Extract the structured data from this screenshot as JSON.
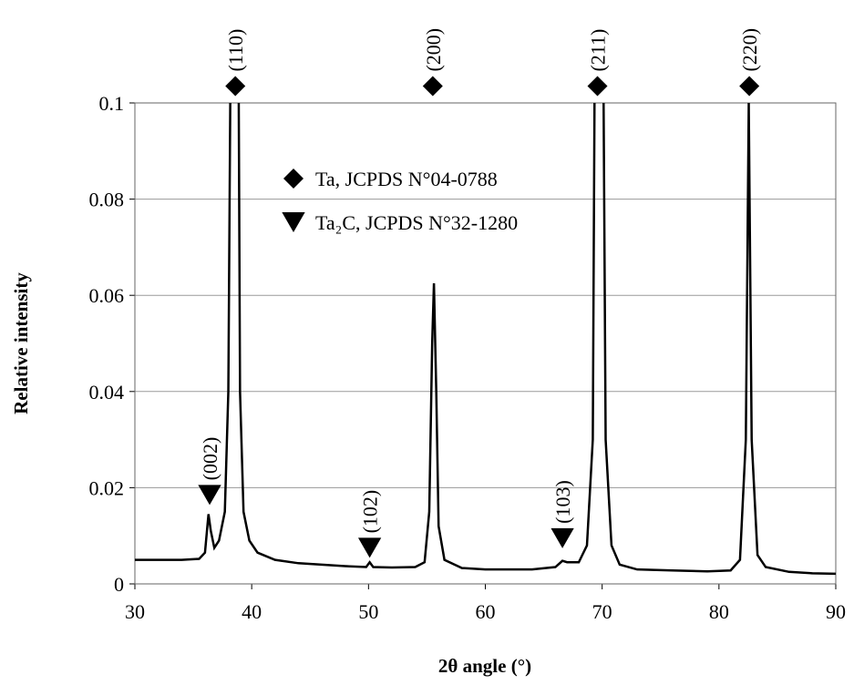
{
  "chart_data": {
    "type": "line",
    "x": [
      30,
      32,
      34,
      35.5,
      36,
      36.3,
      36.5,
      36.8,
      37.2,
      37.7,
      38.0,
      38.3,
      38.8,
      39.0,
      39.3,
      39.8,
      40.5,
      42,
      44,
      46,
      48,
      49.8,
      50.1,
      50.4,
      52,
      54,
      54.8,
      55.2,
      55.45,
      55.6,
      55.8,
      56.0,
      56.5,
      58,
      60,
      62,
      64,
      66,
      66.6,
      67,
      68,
      68.7,
      69.2,
      69.45,
      70.0,
      70.3,
      70.8,
      71.5,
      73,
      76,
      79,
      81,
      81.8,
      82.3,
      82.55,
      82.8,
      83.3,
      84,
      86,
      88,
      90
    ],
    "series": [
      {
        "color": "#000000",
        "values": [
          0.005,
          0.005,
          0.005,
          0.0052,
          0.0065,
          0.0145,
          0.011,
          0.0075,
          0.009,
          0.015,
          0.04,
          0.15,
          0.15,
          0.04,
          0.015,
          0.009,
          0.0065,
          0.005,
          0.0043,
          0.004,
          0.0037,
          0.0035,
          0.0045,
          0.0035,
          0.0034,
          0.0035,
          0.0045,
          0.015,
          0.05,
          0.0625,
          0.04,
          0.012,
          0.005,
          0.0033,
          0.003,
          0.003,
          0.003,
          0.0035,
          0.0048,
          0.0045,
          0.0045,
          0.008,
          0.03,
          0.15,
          0.15,
          0.03,
          0.008,
          0.004,
          0.003,
          0.0028,
          0.0026,
          0.0028,
          0.005,
          0.03,
          0.1,
          0.03,
          0.006,
          0.0035,
          0.0025,
          0.0022,
          0.0021
        ]
      }
    ],
    "xlabel": "2θ angle (°)",
    "ylabel": "Relative intensity",
    "xlim": [
      30,
      90
    ],
    "xticks": [
      30,
      40,
      50,
      60,
      70,
      80,
      90
    ],
    "ylim": [
      0,
      0.1
    ],
    "yticks": [
      0,
      0.02,
      0.04,
      0.06,
      0.08,
      0.1
    ],
    "grid": true,
    "legend": [
      {
        "marker": "diamond",
        "label": "Ta, JCPDS N°04-0788"
      },
      {
        "marker": "triangle",
        "label": "Ta₂C, JCPDS N°32-1280"
      }
    ],
    "annotations": [
      {
        "marker": "diamond",
        "x": 38.6,
        "y": 0.1035,
        "label": "(110)"
      },
      {
        "marker": "diamond",
        "x": 55.5,
        "y": 0.1035,
        "label": "(200)"
      },
      {
        "marker": "diamond",
        "x": 69.6,
        "y": 0.1035,
        "label": "(211)"
      },
      {
        "marker": "diamond",
        "x": 82.6,
        "y": 0.1035,
        "label": "(220)"
      },
      {
        "marker": "triangle",
        "x": 36.4,
        "y": 0.0185,
        "label": "(002)"
      },
      {
        "marker": "triangle",
        "x": 50.1,
        "y": 0.0075,
        "label": "(102)"
      },
      {
        "marker": "triangle",
        "x": 66.6,
        "y": 0.0095,
        "label": "(103)"
      }
    ]
  }
}
